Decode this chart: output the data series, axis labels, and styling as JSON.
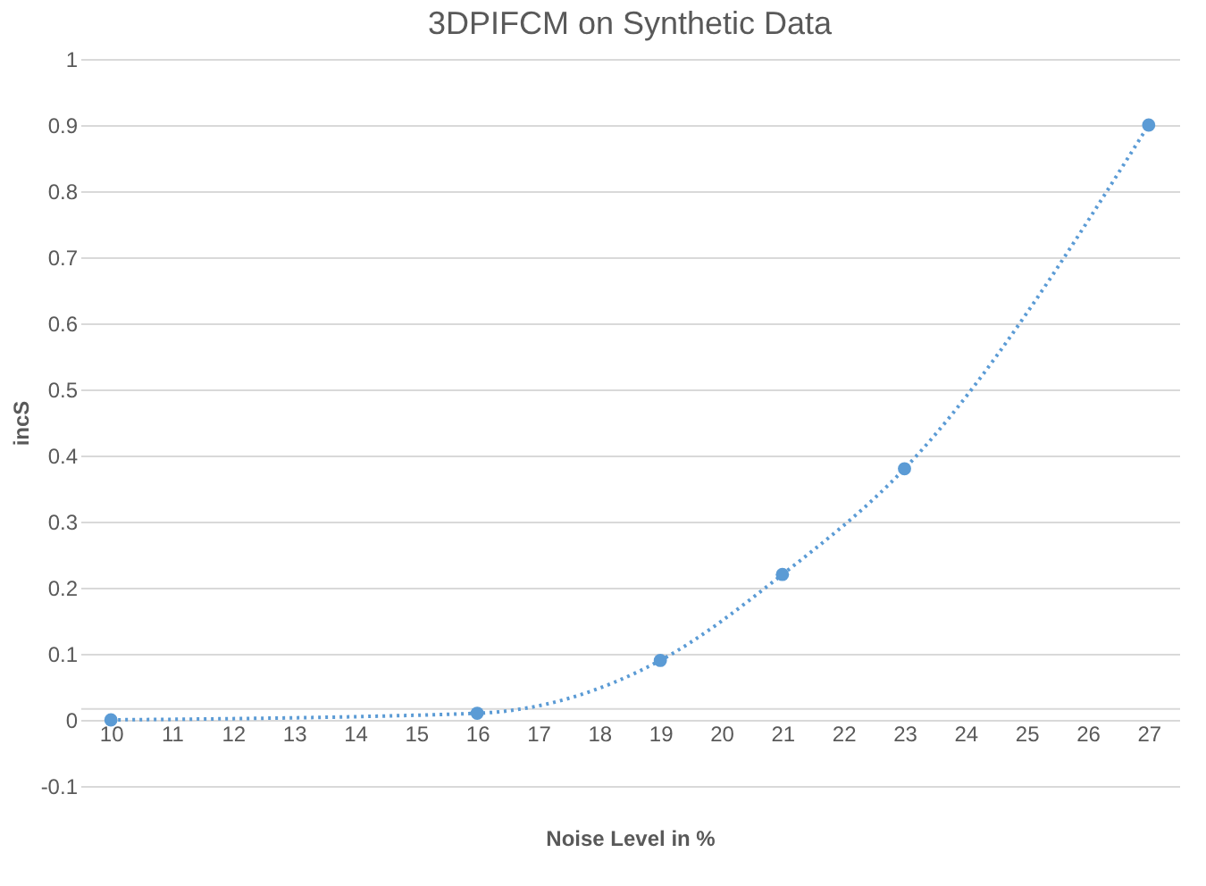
{
  "chart_data": {
    "type": "line",
    "title": "3DPIFCM on Synthetic Data",
    "xlabel": "Noise Level in %",
    "ylabel": "incS",
    "x": [
      10,
      16,
      19,
      21,
      23,
      27
    ],
    "series": [
      {
        "color": "#5b9bd5",
        "values": [
          0,
          0.01,
          0.09,
          0.22,
          0.38,
          0.9
        ]
      }
    ],
    "xlim": [
      9.5,
      27.5
    ],
    "xticks": [
      10,
      11,
      12,
      13,
      14,
      15,
      16,
      17,
      18,
      19,
      20,
      21,
      22,
      23,
      24,
      25,
      26,
      27
    ],
    "ylim": [
      -0.1,
      1
    ],
    "yticks": [
      -0.1,
      0,
      0.1,
      0.2,
      0.3,
      0.4,
      0.5,
      0.6,
      0.7,
      0.8,
      0.9,
      1
    ],
    "grid": "y",
    "marker": "circle",
    "line_style": "dotted",
    "legend": false
  }
}
